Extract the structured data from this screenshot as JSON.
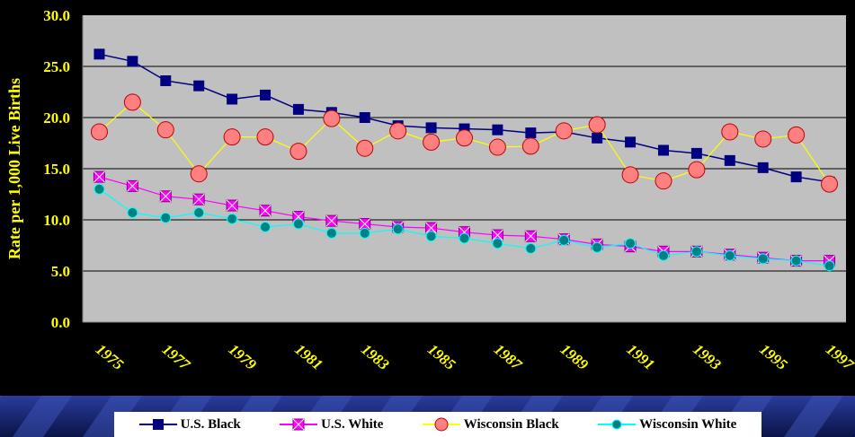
{
  "chart_data": {
    "type": "line",
    "title": "",
    "xlabel": "",
    "ylabel": "Rate per 1,000 Live Births",
    "ylim": [
      0,
      30
    ],
    "yticks": [
      "0.0",
      "5.0",
      "10.0",
      "15.0",
      "20.0",
      "25.0",
      "30.0"
    ],
    "x": [
      1975,
      1976,
      1977,
      1978,
      1979,
      1980,
      1981,
      1982,
      1983,
      1984,
      1985,
      1986,
      1987,
      1988,
      1989,
      1990,
      1991,
      1992,
      1993,
      1994,
      1995,
      1996,
      1997
    ],
    "xtick_labels": [
      "1975",
      "1977",
      "1979",
      "1981",
      "1983",
      "1985",
      "1987",
      "1989",
      "1991",
      "1993",
      "1995",
      "1997"
    ],
    "grid": true,
    "legend_position": "bottom",
    "plot_background": "#c0c0c0",
    "series": [
      {
        "name": "U.S. Black",
        "color": "#000080",
        "marker": "square",
        "values": [
          26.2,
          25.5,
          23.6,
          23.1,
          21.8,
          22.2,
          20.8,
          20.5,
          20.0,
          19.2,
          19.0,
          18.9,
          18.8,
          18.5,
          18.6,
          18.0,
          17.6,
          16.8,
          16.5,
          15.8,
          15.1,
          14.2,
          13.7
        ]
      },
      {
        "name": "U.S. White",
        "color": "#ff00ff",
        "marker": "square-x",
        "values": [
          14.2,
          13.3,
          12.3,
          12.0,
          11.4,
          10.9,
          10.3,
          9.9,
          9.6,
          9.3,
          9.2,
          8.8,
          8.5,
          8.4,
          8.1,
          7.6,
          7.4,
          6.9,
          6.9,
          6.6,
          6.3,
          6.0,
          6.0
        ]
      },
      {
        "name": "Wisconsin Black",
        "color": "#ffff00",
        "marker": "circle",
        "marker_fill": "#ff8080",
        "values": [
          18.6,
          21.5,
          18.8,
          14.5,
          18.1,
          18.1,
          16.7,
          19.9,
          17.0,
          18.7,
          17.6,
          18.0,
          17.1,
          17.2,
          18.7,
          19.3,
          14.4,
          13.8,
          14.9,
          18.6,
          17.9,
          18.3,
          13.5
        ]
      },
      {
        "name": "Wisconsin White",
        "color": "#00ffff",
        "marker": "circle",
        "marker_fill": "#008080",
        "values": [
          13.0,
          10.7,
          10.2,
          10.7,
          10.1,
          9.3,
          9.6,
          8.7,
          8.7,
          9.1,
          8.4,
          8.2,
          7.7,
          7.2,
          8.0,
          7.3,
          7.7,
          6.5,
          6.9,
          6.5,
          6.2,
          6.0,
          5.5
        ]
      }
    ]
  }
}
